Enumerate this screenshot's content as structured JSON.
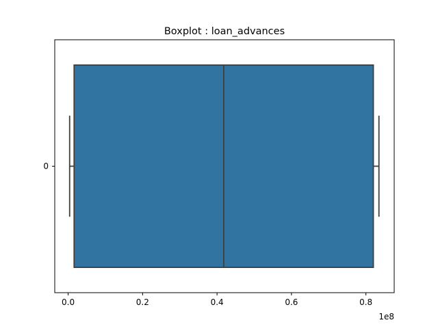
{
  "chart_data": {
    "type": "boxplot",
    "orientation": "horizontal",
    "title": "Boxplot : loan_advances",
    "xlabel": "",
    "ylabel": "",
    "x_scale_label": "1e8",
    "x_scale_factor": 100000000,
    "xlim": [
      -0.036,
      0.876
    ],
    "x_ticks": [
      0.0,
      0.2,
      0.4,
      0.6,
      0.8
    ],
    "x_tick_labels": [
      "0.0",
      "0.2",
      "0.4",
      "0.6",
      "0.8"
    ],
    "categories": [
      "0"
    ],
    "color": "#3274a1",
    "edge_color": "#3f3f3f",
    "grid": false,
    "boxes": [
      {
        "category": "0",
        "whisker_low": 0.004,
        "q1": 0.016,
        "median": 0.418,
        "q3": 0.82,
        "whisker_high": 0.835
      }
    ]
  }
}
